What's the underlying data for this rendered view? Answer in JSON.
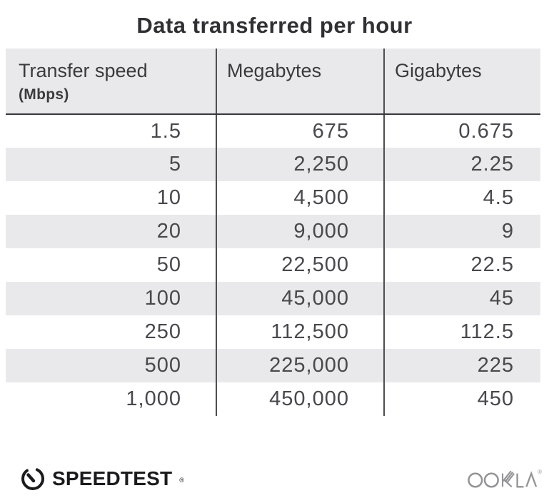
{
  "title": "Data transferred per hour",
  "table": {
    "columns": [
      {
        "label": "Transfer speed",
        "sublabel": "(Mbps)"
      },
      {
        "label": "Megabytes"
      },
      {
        "label": "Gigabytes"
      }
    ],
    "rows": [
      [
        "1.5",
        "675",
        "0.675"
      ],
      [
        "5",
        "2,250",
        "2.25"
      ],
      [
        "10",
        "4,500",
        "4.5"
      ],
      [
        "20",
        "9,000",
        "9"
      ],
      [
        "50",
        "22,500",
        "22.5"
      ],
      [
        "100",
        "45,000",
        "45"
      ],
      [
        "250",
        "112,500",
        "112.5"
      ],
      [
        "500",
        "225,000",
        "225"
      ],
      [
        "1,000",
        "450,000",
        "450"
      ]
    ]
  },
  "footer": {
    "speedtest_label": "SPEEDTEST",
    "speedtest_trademark": "®",
    "ookla_label": "OOKLA",
    "ookla_trademark": "®"
  },
  "colors": {
    "row_alt_background": "#e9e9ec",
    "header_background": "#e9e9ec",
    "divider": "#4d4d52",
    "header_border": "#37373c",
    "title_text": "#2f2f34",
    "data_text": "#48484d",
    "speedtest_logo": "#1b1b1e",
    "ookla_logo": "#949497",
    "page_background": "#ffffff"
  },
  "chart_data": {
    "type": "table",
    "title": "Data transferred per hour",
    "columns": [
      "Transfer speed (Mbps)",
      "Megabytes",
      "Gigabytes"
    ],
    "rows": [
      [
        1.5,
        675,
        0.675
      ],
      [
        5,
        2250,
        2.25
      ],
      [
        10,
        4500,
        4.5
      ],
      [
        20,
        9000,
        9
      ],
      [
        50,
        22500,
        22.5
      ],
      [
        100,
        45000,
        45
      ],
      [
        250,
        112500,
        112.5
      ],
      [
        500,
        225000,
        225
      ],
      [
        1000,
        450000,
        450
      ]
    ]
  }
}
